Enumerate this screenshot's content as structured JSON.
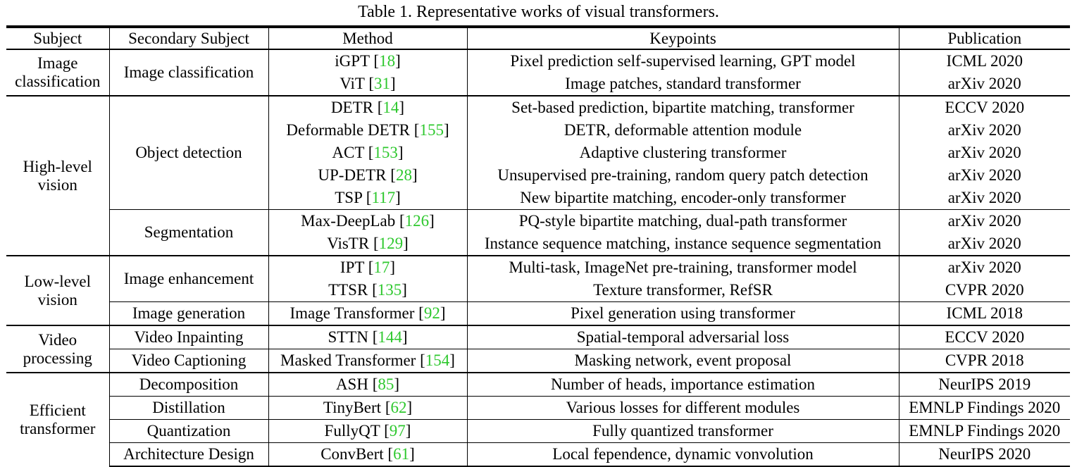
{
  "caption": "Table 1. Representative works of visual transformers.",
  "headers": [
    "Subject",
    "Secondary Subject",
    "Method",
    "Keypoints",
    "Publication"
  ],
  "groups": [
    {
      "subject": [
        "Image",
        "classification"
      ],
      "subs": [
        {
          "secondary": "Image classification",
          "rows": [
            {
              "method": "iGPT",
              "ref": "18",
              "keypoints": "Pixel prediction self-supervised learning, GPT model",
              "pub": "ICML 2020"
            },
            {
              "method": "ViT",
              "ref": "31",
              "keypoints": "Image patches, standard transformer",
              "pub": "arXiv 2020"
            }
          ]
        }
      ]
    },
    {
      "subject": [
        "High-level",
        "vision"
      ],
      "subs": [
        {
          "secondary": "Object detection",
          "rows": [
            {
              "method": "DETR",
              "ref": "14",
              "keypoints": "Set-based prediction, bipartite matching, transformer",
              "pub": "ECCV 2020"
            },
            {
              "method": "Deformable DETR",
              "ref": "155",
              "keypoints": "DETR, deformable attention module",
              "pub": "arXiv 2020"
            },
            {
              "method": "ACT",
              "ref": "153",
              "keypoints": "Adaptive clustering transformer",
              "pub": "arXiv 2020"
            },
            {
              "method": "UP-DETR",
              "ref": "28",
              "keypoints": "Unsupervised pre-training, random query patch detection",
              "pub": "arXiv 2020"
            },
            {
              "method": "TSP",
              "ref": "117",
              "keypoints": "New bipartite matching, encoder-only transformer",
              "pub": "arXiv 2020"
            }
          ]
        },
        {
          "secondary": "Segmentation",
          "rows": [
            {
              "method": "Max-DeepLab",
              "ref": "126",
              "keypoints": "PQ-style bipartite matching, dual-path transformer",
              "pub": "arXiv 2020"
            },
            {
              "method": "VisTR",
              "ref": "129",
              "keypoints": "Instance sequence matching, instance sequence segmentation",
              "pub": "arXiv 2020"
            }
          ]
        }
      ]
    },
    {
      "subject": [
        "Low-level",
        "vision"
      ],
      "subs": [
        {
          "secondary": "Image enhancement",
          "rows": [
            {
              "method": "IPT",
              "ref": "17",
              "keypoints": "Multi-task, ImageNet pre-training, transformer model",
              "pub": "arXiv 2020"
            },
            {
              "method": "TTSR",
              "ref": "135",
              "keypoints": "Texture transformer, RefSR",
              "pub": "CVPR 2020"
            }
          ]
        },
        {
          "secondary": "Image generation",
          "rows": [
            {
              "method": "Image Transformer",
              "ref": "92",
              "keypoints": "Pixel generation using transformer",
              "pub": "ICML 2018"
            }
          ]
        }
      ]
    },
    {
      "subject": [
        "Video",
        "processing"
      ],
      "subs": [
        {
          "secondary": "Video Inpainting",
          "rows": [
            {
              "method": "STTN",
              "ref": "144",
              "keypoints": "Spatial-temporal adversarial loss",
              "pub": "ECCV 2020"
            }
          ]
        },
        {
          "secondary": "Video Captioning",
          "rows": [
            {
              "method": "Masked Transformer",
              "ref": "154",
              "keypoints": "Masking network, event proposal",
              "pub": "CVPR 2018"
            }
          ]
        }
      ]
    },
    {
      "subject": [
        "Efficient",
        "transformer"
      ],
      "subs": [
        {
          "secondary": "Decomposition",
          "rows": [
            {
              "method": "ASH",
              "ref": "85",
              "keypoints": "Number of heads, importance estimation",
              "pub": "NeurIPS 2019"
            }
          ]
        },
        {
          "secondary": "Distillation",
          "rows": [
            {
              "method": "TinyBert",
              "ref": "62",
              "keypoints": "Various losses for different modules",
              "pub": "EMNLP Findings 2020"
            }
          ]
        },
        {
          "secondary": "Quantization",
          "rows": [
            {
              "method": "FullyQT",
              "ref": "97",
              "keypoints": "Fully quantized transformer",
              "pub": "EMNLP Findings 2020"
            }
          ]
        },
        {
          "secondary": "Architecture Design",
          "rows": [
            {
              "method": "ConvBert",
              "ref": "61",
              "keypoints": "Local fependence, dynamic vonvolution",
              "pub": "NeurIPS 2020"
            }
          ]
        }
      ]
    }
  ],
  "colors": {
    "citation": "#2ec82e",
    "text": "#000000",
    "rule": "#000000"
  }
}
